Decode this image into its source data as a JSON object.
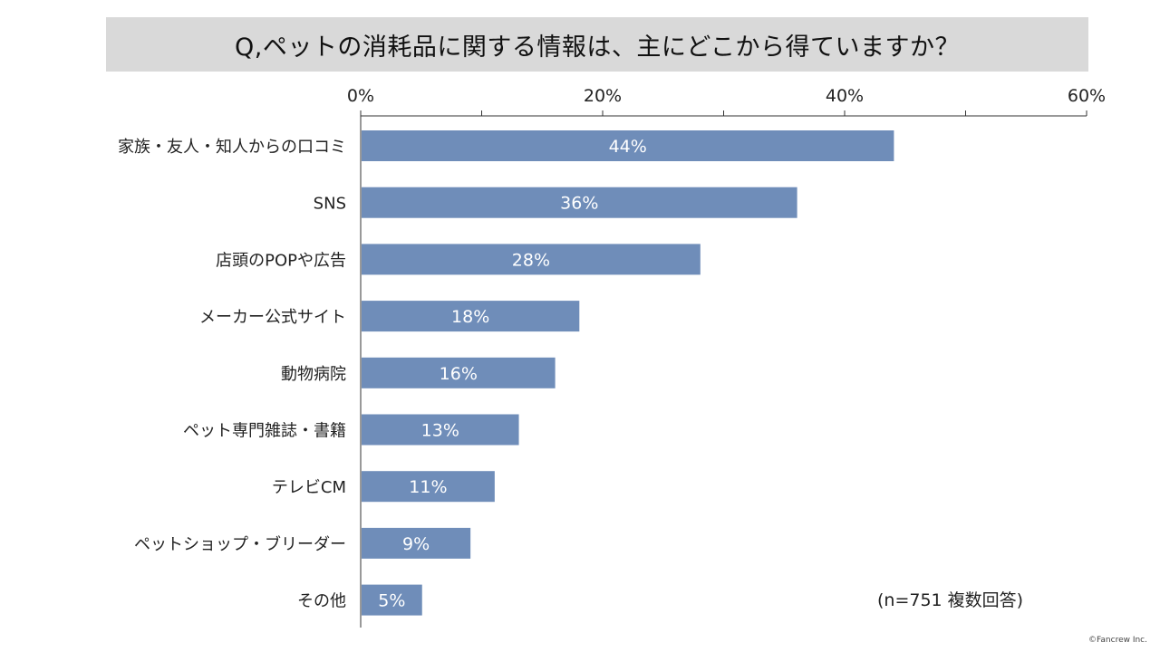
{
  "chart_data": {
    "type": "bar",
    "orientation": "horizontal",
    "title": "Q,ペットの消耗品に関する情報は、主にどこから得ていますか？",
    "categories": [
      "家族・友人・知人からの口コミ",
      "SNS",
      "店頭のPOPや広告",
      "メーカー公式サイト",
      "動物病院",
      "ペット専門雑誌・書籍",
      "テレビCM",
      "ペットショップ・ブリーダー",
      "その他"
    ],
    "values": [
      44,
      36,
      28,
      18,
      16,
      13,
      11,
      9,
      5
    ],
    "value_labels": [
      "44%",
      "36%",
      "28%",
      "18%",
      "16%",
      "13%",
      "11%",
      "9%",
      "5%"
    ],
    "xlim": [
      0,
      60
    ],
    "xticks": [
      0,
      20,
      40,
      60
    ],
    "xtick_labels": [
      "0%",
      "20%",
      "40%",
      "60%"
    ],
    "axis_position": "top",
    "grid": false,
    "bar_color": "#6f8db9",
    "note": "(n=751 複数回答)",
    "credit": "©Fancrew Inc."
  }
}
